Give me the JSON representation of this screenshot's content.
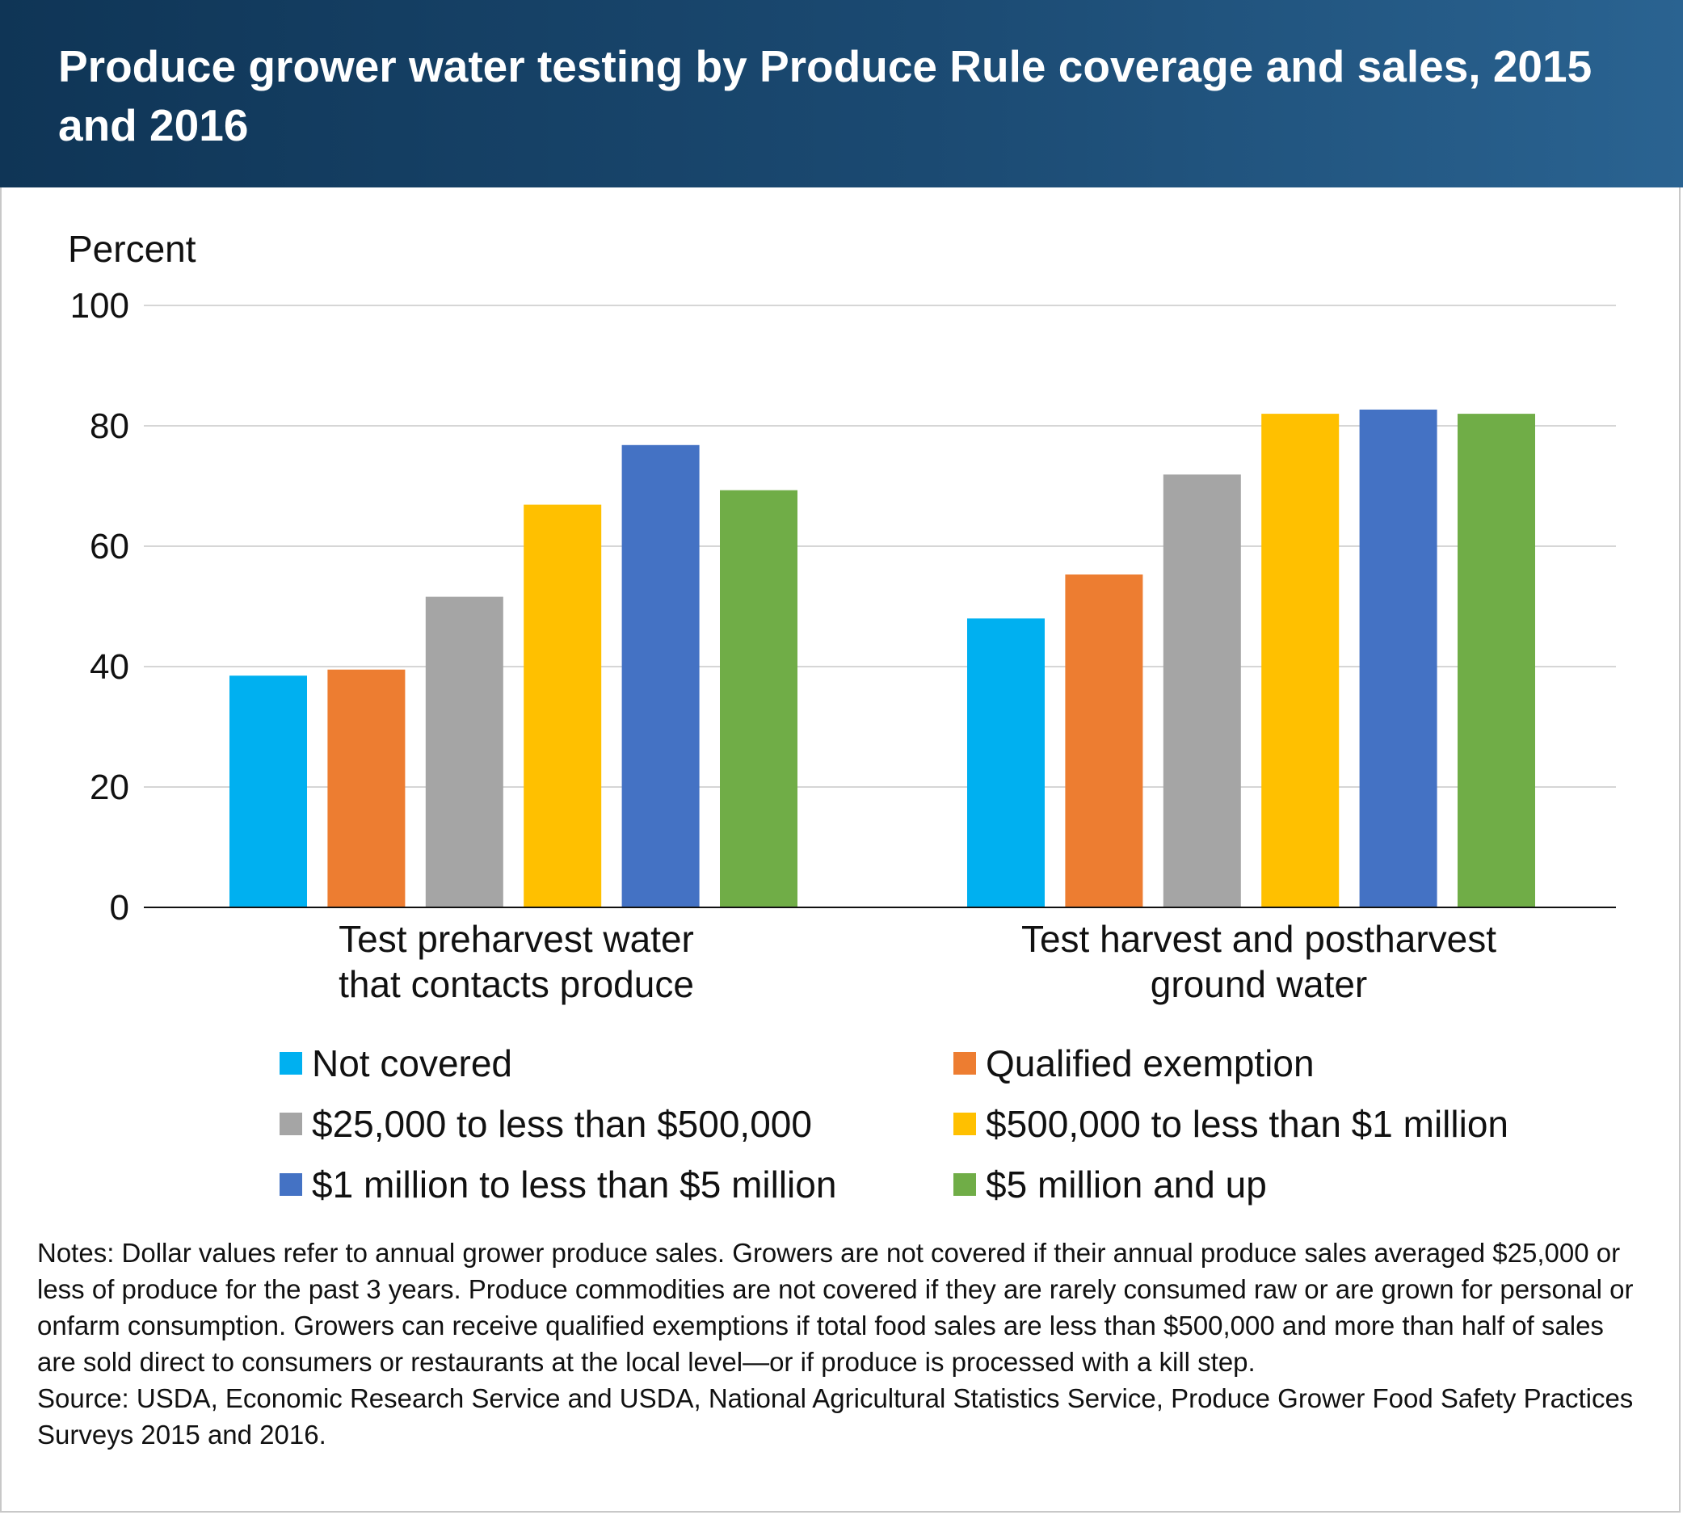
{
  "header": {
    "title": "Produce grower water testing by Produce Rule coverage and sales, 2015 and 2016"
  },
  "chart_data": {
    "type": "bar",
    "title": "Produce grower water testing by Produce Rule coverage and sales, 2015 and 2016",
    "ylabel": "Percent",
    "ylim": [
      0,
      100
    ],
    "yticks": [
      "0",
      "20",
      "40",
      "60",
      "80",
      "100"
    ],
    "grid": true,
    "legend_placement": "bottom",
    "categories": [
      [
        "Test preharvest water",
        "that contacts produce"
      ],
      [
        "Test harvest and postharvest",
        "ground water"
      ]
    ],
    "series": [
      {
        "name": "Not covered",
        "color": "#00b0f0",
        "values": [
          38.5,
          48
        ]
      },
      {
        "name": "Qualified exemption",
        "color": "#ed7d31",
        "values": [
          39.5,
          55.3
        ]
      },
      {
        "name": "$25,000 to less than $500,000",
        "color": "#a5a5a5",
        "values": [
          51.6,
          71.9
        ]
      },
      {
        "name": "$500,000 to less than $1 million",
        "color": "#ffc000",
        "values": [
          66.9,
          82
        ]
      },
      {
        "name": "$1 million to less than $5 million",
        "color": "#4472c4",
        "values": [
          76.8,
          82.7
        ]
      },
      {
        "name": "$5 million and up",
        "color": "#70ad47",
        "values": [
          69.3,
          82
        ]
      }
    ]
  },
  "notes": {
    "notes_text": "Notes: Dollar values refer to annual grower produce sales. Growers are not covered if their annual produce sales averaged $25,000 or less of produce for the past 3 years. Produce commodities are not covered if they are rarely consumed raw or are grown for personal or onfarm consumption. Growers can receive qualified exemptions if total food sales are less than $500,000 and more than half of sales are sold direct to consumers or restaurants at the local level—or if produce is processed with a kill step.",
    "source_text": "Source: USDA, Economic Research Service and USDA, National Agricultural Statistics Service, Produce Grower Food Safety Practices Surveys 2015 and 2016."
  }
}
